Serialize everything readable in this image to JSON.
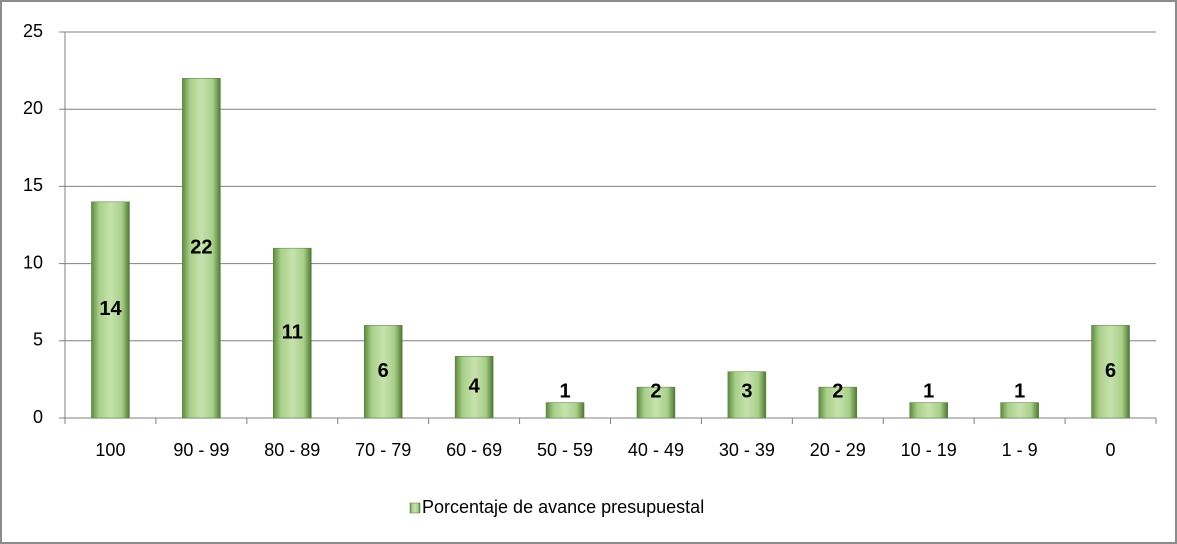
{
  "chart_data": {
    "type": "bar",
    "categories": [
      "100",
      "90 - 99",
      "80 - 89",
      "70 - 79",
      "60 - 69",
      "50 - 59",
      "40 - 49",
      "30 - 39",
      "20 - 29",
      "10 - 19",
      "1 - 9",
      "0"
    ],
    "series": [
      {
        "name": "Porcentaje de avance presupuestal",
        "color": "#8cb36a",
        "values": [
          14,
          22,
          11,
          6,
          4,
          1,
          2,
          3,
          2,
          1,
          1,
          6
        ]
      }
    ],
    "ylim": [
      0,
      25
    ],
    "yticks": [
      0,
      5,
      10,
      15,
      20,
      25
    ],
    "grid": true,
    "legend": "bottom"
  }
}
